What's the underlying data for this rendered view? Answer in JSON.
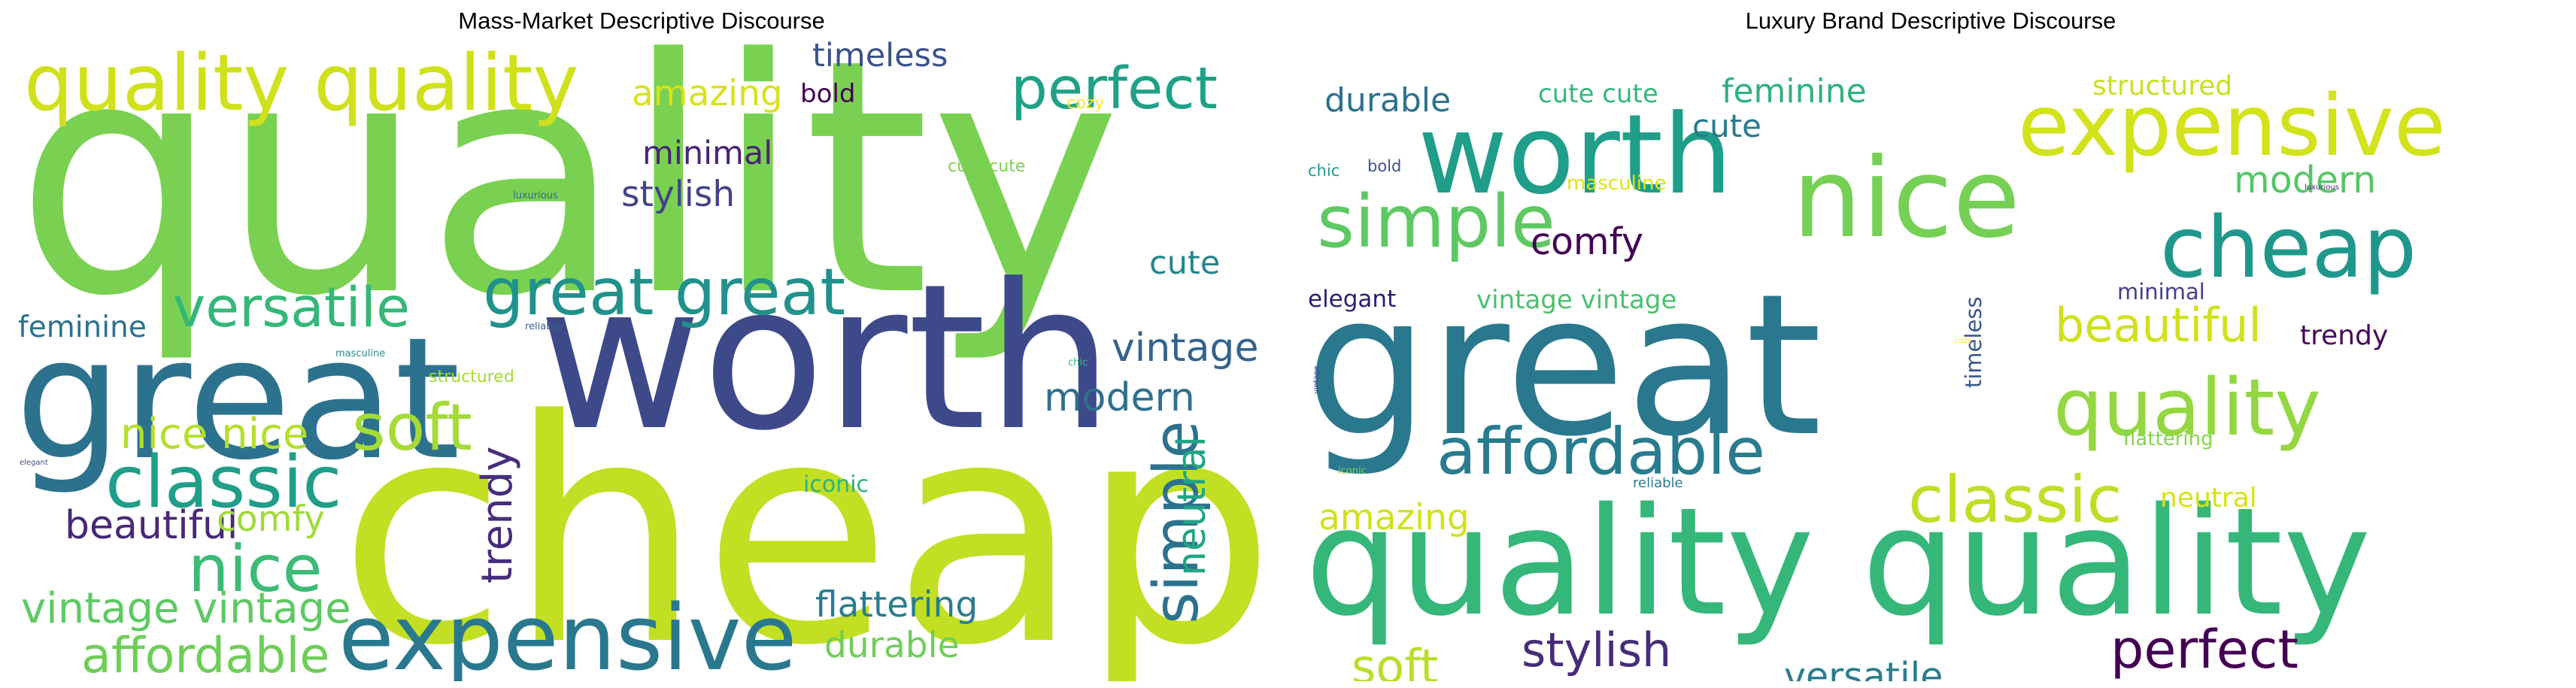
{
  "chart_data": [
    {
      "type": "wordcloud",
      "title": "Mass-Market Descriptive Discourse",
      "colormap": "viridis",
      "words": [
        {
          "text": "quality",
          "weight": 1.0,
          "color": "#7ad151",
          "rotate": 0
        },
        {
          "text": "cheap",
          "weight": 0.95,
          "color": "#c2df23",
          "rotate": 0
        },
        {
          "text": "worth",
          "weight": 0.62,
          "color": "#3e4989",
          "rotate": 0
        },
        {
          "text": "great",
          "weight": 0.52,
          "color": "#2c728e",
          "rotate": 0
        },
        {
          "text": "quality quality",
          "weight": 0.24,
          "color": "#d0e11c",
          "rotate": 0
        },
        {
          "text": "expensive",
          "weight": 0.28,
          "color": "#2a788e",
          "rotate": 0
        },
        {
          "text": "great great",
          "weight": 0.2,
          "color": "#21918c",
          "rotate": 0
        },
        {
          "text": "classic",
          "weight": 0.22,
          "color": "#1f9e89",
          "rotate": 0
        },
        {
          "text": "versatile",
          "weight": 0.17,
          "color": "#35b779",
          "rotate": 0
        },
        {
          "text": "perfect",
          "weight": 0.18,
          "color": "#1fa187",
          "rotate": 0
        },
        {
          "text": "nice",
          "weight": 0.2,
          "color": "#3bbb75",
          "rotate": 0
        },
        {
          "text": "soft",
          "weight": 0.2,
          "color": "#a5db36",
          "rotate": 0
        },
        {
          "text": "simple",
          "weight": 0.19,
          "color": "#2c728e",
          "rotate": -90
        },
        {
          "text": "affordable",
          "weight": 0.15,
          "color": "#6ece58",
          "rotate": 0
        },
        {
          "text": "vintage vintage",
          "weight": 0.13,
          "color": "#5ec962",
          "rotate": 0
        },
        {
          "text": "nice nice",
          "weight": 0.13,
          "color": "#b5de2b",
          "rotate": 0
        },
        {
          "text": "trendy",
          "weight": 0.13,
          "color": "#472d7b",
          "rotate": -90
        },
        {
          "text": "beautiful",
          "weight": 0.12,
          "color": "#482878",
          "rotate": 0
        },
        {
          "text": "modern",
          "weight": 0.12,
          "color": "#2d708e",
          "rotate": 0
        },
        {
          "text": "vintage",
          "weight": 0.12,
          "color": "#33638d",
          "rotate": 0
        },
        {
          "text": "neutral",
          "weight": 0.12,
          "color": "#20a486",
          "rotate": -90
        },
        {
          "text": "flattering",
          "weight": 0.11,
          "color": "#287d8e",
          "rotate": 0
        },
        {
          "text": "durable",
          "weight": 0.11,
          "color": "#6ece58",
          "rotate": 0
        },
        {
          "text": "comfy",
          "weight": 0.11,
          "color": "#a0da39",
          "rotate": 0
        },
        {
          "text": "amazing",
          "weight": 0.11,
          "color": "#d8e219",
          "rotate": 0
        },
        {
          "text": "stylish",
          "weight": 0.11,
          "color": "#414487",
          "rotate": 0
        },
        {
          "text": "timeless",
          "weight": 0.1,
          "color": "#3b528b",
          "rotate": 0
        },
        {
          "text": "minimal",
          "weight": 0.1,
          "color": "#482475",
          "rotate": 0
        },
        {
          "text": "cute",
          "weight": 0.1,
          "color": "#25858e",
          "rotate": 0
        },
        {
          "text": "feminine",
          "weight": 0.09,
          "color": "#2c728e",
          "rotate": 0
        },
        {
          "text": "bold",
          "weight": 0.08,
          "color": "#440154",
          "rotate": 0
        },
        {
          "text": "iconic",
          "weight": 0.07,
          "color": "#2db27d",
          "rotate": 0
        },
        {
          "text": "cozy",
          "weight": 0.05,
          "color": "#fde725",
          "rotate": 0
        },
        {
          "text": "cute cute",
          "weight": 0.05,
          "color": "#7ad151",
          "rotate": 0
        },
        {
          "text": "structured",
          "weight": 0.05,
          "color": "#a5db36",
          "rotate": 0
        },
        {
          "text": "luxurious",
          "weight": 0.03,
          "color": "#31688e",
          "rotate": 0
        },
        {
          "text": "reliable",
          "weight": 0.03,
          "color": "#355f8d",
          "rotate": 0
        },
        {
          "text": "masculine",
          "weight": 0.03,
          "color": "#228c8d",
          "rotate": 0
        },
        {
          "text": "chic",
          "weight": 0.03,
          "color": "#35b779",
          "rotate": 0
        },
        {
          "text": "elegant",
          "weight": 0.02,
          "color": "#3e4989",
          "rotate": 0
        }
      ]
    },
    {
      "type": "wordcloud",
      "title": "Luxury Brand Descriptive Discourse",
      "colormap": "viridis",
      "words": [
        {
          "text": "great",
          "weight": 1.0,
          "color": "#2a788e",
          "rotate": 0
        },
        {
          "text": "quality quality",
          "weight": 0.76,
          "color": "#35b779",
          "rotate": 0
        },
        {
          "text": "worth",
          "weight": 0.56,
          "color": "#1f9e89",
          "rotate": 0
        },
        {
          "text": "nice",
          "weight": 0.56,
          "color": "#75d054",
          "rotate": 0
        },
        {
          "text": "expensive",
          "weight": 0.43,
          "color": "#d2e21b",
          "rotate": 0
        },
        {
          "text": "cheap",
          "weight": 0.43,
          "color": "#1f988b",
          "rotate": 0
        },
        {
          "text": "quality",
          "weight": 0.4,
          "color": "#93d741",
          "rotate": 0
        },
        {
          "text": "simple",
          "weight": 0.37,
          "color": "#5ec962",
          "rotate": 0
        },
        {
          "text": "affordable",
          "weight": 0.33,
          "color": "#287c8e",
          "rotate": 0
        },
        {
          "text": "classic",
          "weight": 0.33,
          "color": "#bddf26",
          "rotate": 0
        },
        {
          "text": "perfect",
          "weight": 0.27,
          "color": "#440154",
          "rotate": 0
        },
        {
          "text": "stylish",
          "weight": 0.24,
          "color": "#472c7a",
          "rotate": 0
        },
        {
          "text": "soft",
          "weight": 0.24,
          "color": "#b8de29",
          "rotate": 0
        },
        {
          "text": "beautiful",
          "weight": 0.24,
          "color": "#d0e11c",
          "rotate": 0
        },
        {
          "text": "versatile",
          "weight": 0.19,
          "color": "#287d8e",
          "rotate": 0
        },
        {
          "text": "modern",
          "weight": 0.19,
          "color": "#56c667",
          "rotate": 0
        },
        {
          "text": "comfy",
          "weight": 0.19,
          "color": "#440154",
          "rotate": 0
        },
        {
          "text": "amazing",
          "weight": 0.18,
          "color": "#d0e11c",
          "rotate": 0
        },
        {
          "text": "durable",
          "weight": 0.17,
          "color": "#2c728e",
          "rotate": 0
        },
        {
          "text": "feminine",
          "weight": 0.17,
          "color": "#2db27d",
          "rotate": 0
        },
        {
          "text": "structured",
          "weight": 0.14,
          "color": "#c8e020",
          "rotate": 0
        },
        {
          "text": "cute",
          "weight": 0.16,
          "color": "#29798e",
          "rotate": 0
        },
        {
          "text": "cute cute",
          "weight": 0.13,
          "color": "#35b779",
          "rotate": 0
        },
        {
          "text": "neutral",
          "weight": 0.14,
          "color": "#d5e21a",
          "rotate": 0
        },
        {
          "text": "trendy",
          "weight": 0.14,
          "color": "#46085c",
          "rotate": 0
        },
        {
          "text": "vintage vintage",
          "weight": 0.13,
          "color": "#4ac16d",
          "rotate": 0
        },
        {
          "text": "elegant",
          "weight": 0.12,
          "color": "#2d1e6f",
          "rotate": 0
        },
        {
          "text": "minimal",
          "weight": 0.11,
          "color": "#433e85",
          "rotate": 0
        },
        {
          "text": "timeless",
          "weight": 0.11,
          "color": "#39568c",
          "rotate": -90
        },
        {
          "text": "flattering",
          "weight": 0.1,
          "color": "#84d44b",
          "rotate": 0
        },
        {
          "text": "masculine",
          "weight": 0.1,
          "color": "#dfe318",
          "rotate": 0
        },
        {
          "text": "bold",
          "weight": 0.08,
          "color": "#3b528b",
          "rotate": 0
        },
        {
          "text": "chic",
          "weight": 0.08,
          "color": "#1f9a8a",
          "rotate": 0
        },
        {
          "text": "reliable",
          "weight": 0.07,
          "color": "#297b8e",
          "rotate": 0
        },
        {
          "text": "iconic",
          "weight": 0.05,
          "color": "#7fd34e",
          "rotate": 0
        },
        {
          "text": "vintage",
          "weight": 0.04,
          "color": "#3e4a89",
          "rotate": -90
        },
        {
          "text": "luxurious",
          "weight": 0.04,
          "color": "#482475",
          "rotate": 0
        },
        {
          "text": "cozy",
          "weight": 0.03,
          "color": "#fde725",
          "rotate": 0
        }
      ]
    }
  ]
}
